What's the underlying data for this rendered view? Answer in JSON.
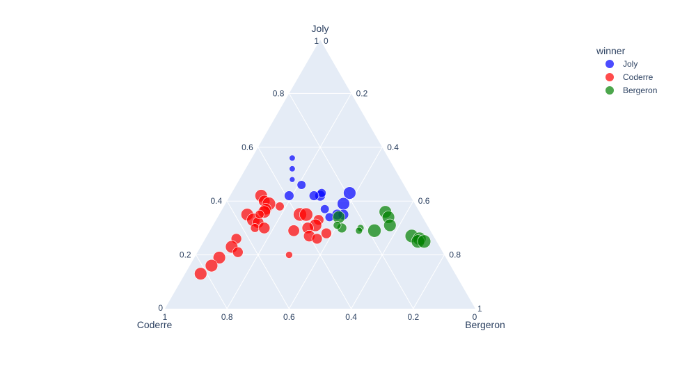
{
  "chart_data": {
    "type": "scatter",
    "subtype": "ternary",
    "axes": {
      "a": {
        "title": "Joly",
        "ticks": [
          "0.2",
          "0.4",
          "0.6",
          "0.8",
          "1"
        ]
      },
      "b": {
        "title": "Coderre",
        "ticks": [
          "0.2",
          "0.4",
          "0.6",
          "0.8",
          "1"
        ]
      },
      "c": {
        "title": "Bergeron",
        "ticks": [
          "0.2",
          "0.4",
          "0.6",
          "0.8",
          "1"
        ]
      }
    },
    "corner_zero_labels": [
      "0",
      "0",
      "0"
    ],
    "grid": true,
    "background": "#E5ECF6",
    "legend": {
      "title": "winner",
      "placement": "top-right"
    },
    "series": [
      {
        "name": "Joly",
        "color": "#0000ff",
        "points": [
          {
            "a": 0.56,
            "b": 0.31,
            "c": 0.13,
            "size": 0.2
          },
          {
            "a": 0.52,
            "b": 0.33,
            "c": 0.15,
            "size": 0.2
          },
          {
            "a": 0.48,
            "b": 0.35,
            "c": 0.17,
            "size": 0.15
          },
          {
            "a": 0.46,
            "b": 0.33,
            "c": 0.21,
            "size": 0.5
          },
          {
            "a": 0.42,
            "b": 0.39,
            "c": 0.19,
            "size": 0.6
          },
          {
            "a": 0.42,
            "b": 0.29,
            "c": 0.29,
            "size": 0.7
          },
          {
            "a": 0.43,
            "b": 0.28,
            "c": 0.29,
            "size": 0.5
          },
          {
            "a": 0.42,
            "b": 0.31,
            "c": 0.27,
            "size": 0.6
          },
          {
            "a": 0.43,
            "b": 0.19,
            "c": 0.38,
            "size": 0.9
          },
          {
            "a": 0.39,
            "b": 0.23,
            "c": 0.38,
            "size": 0.9
          },
          {
            "a": 0.37,
            "b": 0.3,
            "c": 0.33,
            "size": 0.5
          },
          {
            "a": 0.35,
            "b": 0.25,
            "c": 0.4,
            "size": 0.7
          },
          {
            "a": 0.35,
            "b": 0.27,
            "c": 0.38,
            "size": 0.7
          },
          {
            "a": 0.34,
            "b": 0.3,
            "c": 0.36,
            "size": 0.5
          }
        ]
      },
      {
        "name": "Coderre",
        "color": "#ff0000",
        "points": [
          {
            "a": 0.42,
            "b": 0.48,
            "c": 0.1,
            "size": 0.9
          },
          {
            "a": 0.4,
            "b": 0.48,
            "c": 0.12,
            "size": 0.8
          },
          {
            "a": 0.39,
            "b": 0.47,
            "c": 0.14,
            "size": 1.0
          },
          {
            "a": 0.37,
            "b": 0.49,
            "c": 0.14,
            "size": 0.8
          },
          {
            "a": 0.36,
            "b": 0.5,
            "c": 0.14,
            "size": 0.9
          },
          {
            "a": 0.35,
            "b": 0.56,
            "c": 0.09,
            "size": 0.9
          },
          {
            "a": 0.33,
            "b": 0.55,
            "c": 0.12,
            "size": 1.0
          },
          {
            "a": 0.32,
            "b": 0.54,
            "c": 0.14,
            "size": 0.8
          },
          {
            "a": 0.35,
            "b": 0.52,
            "c": 0.13,
            "size": 0.5
          },
          {
            "a": 0.3,
            "b": 0.56,
            "c": 0.14,
            "size": 0.5
          },
          {
            "a": 0.3,
            "b": 0.53,
            "c": 0.17,
            "size": 0.8
          },
          {
            "a": 0.38,
            "b": 0.44,
            "c": 0.18,
            "size": 0.5
          },
          {
            "a": 0.35,
            "b": 0.39,
            "c": 0.26,
            "size": 1.0
          },
          {
            "a": 0.35,
            "b": 0.37,
            "c": 0.28,
            "size": 1.0
          },
          {
            "a": 0.33,
            "b": 0.34,
            "c": 0.33,
            "size": 0.7
          },
          {
            "a": 0.31,
            "b": 0.36,
            "c": 0.33,
            "size": 0.9
          },
          {
            "a": 0.3,
            "b": 0.39,
            "c": 0.31,
            "size": 0.8
          },
          {
            "a": 0.29,
            "b": 0.44,
            "c": 0.27,
            "size": 0.8
          },
          {
            "a": 0.27,
            "b": 0.4,
            "c": 0.33,
            "size": 0.8
          },
          {
            "a": 0.26,
            "b": 0.38,
            "c": 0.36,
            "size": 0.7
          },
          {
            "a": 0.28,
            "b": 0.34,
            "c": 0.38,
            "size": 0.7
          },
          {
            "a": 0.2,
            "b": 0.5,
            "c": 0.3,
            "size": 0.3
          },
          {
            "a": 0.26,
            "b": 0.64,
            "c": 0.1,
            "size": 0.7
          },
          {
            "a": 0.23,
            "b": 0.67,
            "c": 0.1,
            "size": 0.9
          },
          {
            "a": 0.21,
            "b": 0.66,
            "c": 0.13,
            "size": 0.7
          },
          {
            "a": 0.19,
            "b": 0.73,
            "c": 0.08,
            "size": 0.9
          },
          {
            "a": 0.16,
            "b": 0.77,
            "c": 0.07,
            "size": 0.9
          },
          {
            "a": 0.13,
            "b": 0.82,
            "c": 0.05,
            "size": 0.9
          }
        ]
      },
      {
        "name": "Bergeron",
        "color": "#008000",
        "points": [
          {
            "a": 0.34,
            "b": 0.27,
            "c": 0.39,
            "size": 0.9
          },
          {
            "a": 0.36,
            "b": 0.11,
            "c": 0.53,
            "size": 0.9
          },
          {
            "a": 0.34,
            "b": 0.11,
            "c": 0.55,
            "size": 0.9
          },
          {
            "a": 0.31,
            "b": 0.12,
            "c": 0.57,
            "size": 0.9
          },
          {
            "a": 0.3,
            "b": 0.28,
            "c": 0.42,
            "size": 0.6
          },
          {
            "a": 0.31,
            "b": 0.29,
            "c": 0.4,
            "size": 0.4
          },
          {
            "a": 0.29,
            "b": 0.18,
            "c": 0.53,
            "size": 1.0
          },
          {
            "a": 0.3,
            "b": 0.22,
            "c": 0.48,
            "size": 0.3
          },
          {
            "a": 0.29,
            "b": 0.23,
            "c": 0.48,
            "size": 0.3
          },
          {
            "a": 0.27,
            "b": 0.07,
            "c": 0.66,
            "size": 1.0
          },
          {
            "a": 0.26,
            "b": 0.05,
            "c": 0.69,
            "size": 1.0
          },
          {
            "a": 0.25,
            "b": 0.06,
            "c": 0.69,
            "size": 1.0
          },
          {
            "a": 0.25,
            "b": 0.04,
            "c": 0.71,
            "size": 1.0
          }
        ]
      }
    ]
  }
}
